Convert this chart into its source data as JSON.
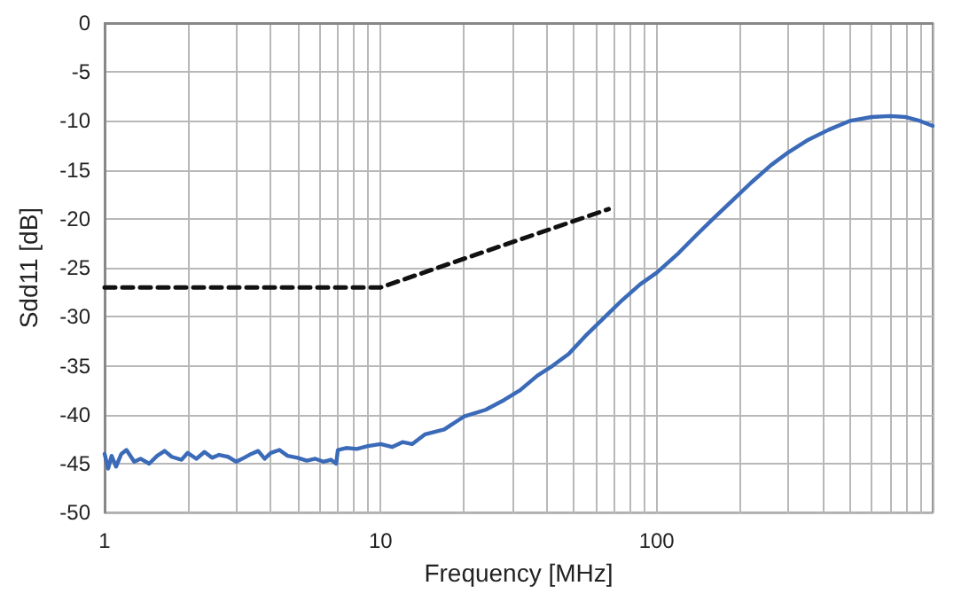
{
  "chart_data": {
    "type": "line",
    "xlabel": "Frequency [MHz]",
    "ylabel": "Sdd11 [dB]",
    "log": "x",
    "grid": true,
    "marker": "none",
    "xlim": [
      1,
      1000
    ],
    "ylim": [
      -50,
      0
    ],
    "xticks": [
      1,
      {
        "value": 2,
        "label": null
      },
      {
        "value": 3,
        "label": null
      },
      {
        "value": 4,
        "label": null
      },
      {
        "value": 5,
        "label": null
      },
      {
        "value": 6,
        "label": null
      },
      {
        "value": 7,
        "label": null
      },
      {
        "value": 8,
        "label": null
      },
      {
        "value": 9,
        "label": null
      },
      10,
      {
        "value": 20,
        "label": null
      },
      {
        "value": 30,
        "label": null
      },
      {
        "value": 40,
        "label": null
      },
      {
        "value": 50,
        "label": null
      },
      {
        "value": 60,
        "label": null
      },
      {
        "value": 70,
        "label": null
      },
      {
        "value": 80,
        "label": null
      },
      {
        "value": 90,
        "label": null
      },
      100,
      {
        "value": 200,
        "label": null
      },
      {
        "value": 300,
        "label": null
      },
      {
        "value": 400,
        "label": null
      },
      {
        "value": 500,
        "label": null
      },
      {
        "value": 600,
        "label": null
      },
      {
        "value": 700,
        "label": null
      },
      {
        "value": 800,
        "label": null
      },
      {
        "value": 900,
        "label": null
      },
      {
        "value": 1000,
        "label": null
      }
    ],
    "yticks": [
      -50,
      -45,
      -40,
      -35,
      -30,
      -25,
      -20,
      -15,
      -10,
      -5,
      0
    ],
    "series": [
      {
        "color": "#3a6ab8",
        "line_style": "solid",
        "x": [
          1,
          1.03,
          1.06,
          1.1,
          1.15,
          1.2,
          1.28,
          1.35,
          1.45,
          1.55,
          1.65,
          1.75,
          1.9,
          2.0,
          2.15,
          2.3,
          2.45,
          2.6,
          2.8,
          3.0,
          3.2,
          3.4,
          3.6,
          3.8,
          4.0,
          4.3,
          4.6,
          5.0,
          5.4,
          5.8,
          6.2,
          6.6,
          6.9,
          7.0,
          7.5,
          8.2,
          9,
          10,
          11,
          12,
          13,
          14.5,
          17,
          20,
          24,
          28,
          32,
          37,
          42,
          48,
          55,
          65,
          75,
          87,
          100,
          120,
          140,
          160,
          190,
          220,
          260,
          300,
          350,
          420,
          500,
          600,
          700,
          800,
          900,
          1000
        ],
        "values": [
          -44,
          -45.5,
          -44.2,
          -45.3,
          -44,
          -43.6,
          -44.8,
          -44.5,
          -45,
          -44.2,
          -43.7,
          -44.3,
          -44.6,
          -43.9,
          -44.5,
          -43.8,
          -44.4,
          -44.1,
          -44.3,
          -44.8,
          -44.4,
          -44,
          -43.7,
          -44.5,
          -43.9,
          -43.6,
          -44.2,
          -44.4,
          -44.7,
          -44.5,
          -44.8,
          -44.6,
          -45,
          -43.6,
          -43.4,
          -43.5,
          -43.2,
          -43,
          -43.3,
          -42.8,
          -43,
          -42,
          -41.5,
          -40.2,
          -39.5,
          -38.5,
          -37.5,
          -36,
          -35,
          -33.8,
          -32,
          -30,
          -28.3,
          -26.7,
          -25.5,
          -23.5,
          -21.6,
          -20,
          -18,
          -16.3,
          -14.5,
          -13.2,
          -12,
          -10.9,
          -10,
          -9.6,
          -9.5,
          -9.6,
          -10,
          -10.5
        ]
      },
      {
        "color": "#111111",
        "line_style": "dashed",
        "x": [
          1,
          10,
          67
        ],
        "values": [
          -27,
          -27,
          -19
        ]
      }
    ]
  }
}
